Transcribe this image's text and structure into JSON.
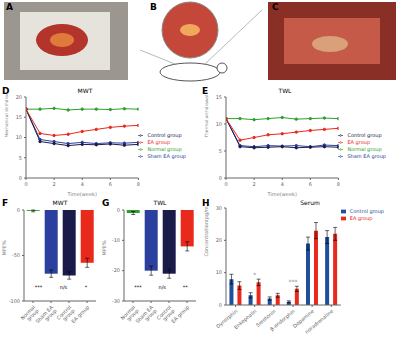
{
  "chart_data": [
    {
      "panel": "D",
      "type": "line",
      "title": "MWT",
      "x_label": "Time(week)",
      "y_label": "Mechanical Withdrawal Threshold(g)",
      "x": [
        0,
        1,
        2,
        3,
        4,
        5,
        6,
        7,
        8
      ],
      "xlim": [
        0,
        8
      ],
      "xticks": [
        0,
        2,
        4,
        6,
        8
      ],
      "ylim": [
        0,
        20
      ],
      "yticks": [
        0,
        5,
        10,
        15,
        20
      ],
      "legend": "right",
      "marker": "circle",
      "series": [
        {
          "name": "Normal group",
          "color": "#2ca02c",
          "values": [
            17,
            17,
            17.2,
            16.8,
            17,
            17,
            16.9,
            17.1,
            17
          ]
        },
        {
          "name": "Sham EA group",
          "color": "#2b3f9e",
          "values": [
            17,
            9.5,
            9,
            8.5,
            8.8,
            8.5,
            8.7,
            8.6,
            8.8
          ]
        },
        {
          "name": "Control group",
          "color": "#1b1b4a",
          "values": [
            17,
            9,
            8.5,
            8,
            8.3,
            8.2,
            8.4,
            8.1,
            8.3
          ]
        },
        {
          "name": "EA group",
          "color": "#e8291c",
          "values": [
            17,
            11,
            10.5,
            10.8,
            11.5,
            12,
            12.5,
            12.8,
            13
          ]
        }
      ]
    },
    {
      "panel": "E",
      "type": "line",
      "title": "TWL",
      "x_label": "Time(week)",
      "y_label": "Thermal withdrawal Latency(s)",
      "x": [
        0,
        1,
        2,
        3,
        4,
        5,
        6,
        7,
        8
      ],
      "xlim": [
        0,
        8
      ],
      "xticks": [
        0,
        2,
        4,
        6,
        8
      ],
      "ylim": [
        0,
        15
      ],
      "yticks": [
        0,
        5,
        10,
        15
      ],
      "legend": "right",
      "marker": "circle",
      "series": [
        {
          "name": "Normal group",
          "color": "#2ca02c",
          "values": [
            11,
            11,
            10.8,
            11,
            11.2,
            10.9,
            11,
            11.1,
            11
          ]
        },
        {
          "name": "Sham EA group",
          "color": "#2b3f9e",
          "values": [
            11,
            6,
            5.8,
            6,
            5.9,
            6,
            5.8,
            6.1,
            6
          ]
        },
        {
          "name": "Control group",
          "color": "#1b1b4a",
          "values": [
            11,
            5.8,
            5.6,
            5.7,
            5.8,
            5.6,
            5.7,
            5.8,
            5.7
          ]
        },
        {
          "name": "EA group",
          "color": "#e8291c",
          "values": [
            11,
            7,
            7.5,
            8,
            8.2,
            8.5,
            8.8,
            9,
            9.2
          ]
        }
      ]
    },
    {
      "panel": "F",
      "type": "bar",
      "title": "MWT",
      "y_label": "MPE%",
      "categories": [
        "Normal group",
        "Sham EA group",
        "Control group",
        "EA group"
      ],
      "values": [
        -1,
        -70,
        -72,
        -58
      ],
      "errors": [
        1,
        4,
        4,
        5
      ],
      "colors": [
        "#2ca02c",
        "#2b3f9e",
        "#1b1b4a",
        "#e8291c"
      ],
      "ylim": [
        -100,
        0
      ],
      "yticks": [
        -100,
        -50,
        0
      ],
      "annotations": [
        "***",
        "n/s",
        "*"
      ]
    },
    {
      "panel": "G",
      "type": "bar",
      "title": "TWL",
      "y_label": "MPE%",
      "categories": [
        "Normal group",
        "Sham EA group",
        "Control group",
        "EA group"
      ],
      "values": [
        -1,
        -20,
        -21,
        -12
      ],
      "errors": [
        0.5,
        1.5,
        1.5,
        1.5
      ],
      "colors": [
        "#2ca02c",
        "#2b3f9e",
        "#1b1b4a",
        "#e8291c"
      ],
      "ylim": [
        -30,
        0
      ],
      "yticks": [
        -30,
        -20,
        -10,
        0
      ],
      "annotations": [
        "***",
        "n/s",
        "**"
      ]
    },
    {
      "panel": "H",
      "type": "bar",
      "title": "Serum",
      "y_label": "Concentration(pg/ml)",
      "categories": [
        "Dynorphin",
        "Enkephalin",
        "Serotonin",
        "β-endorphin",
        "Dopamine",
        "noradrenaline"
      ],
      "series": [
        {
          "name": "Control group",
          "color": "#1f4e9c",
          "values": [
            8,
            3,
            2,
            1,
            19,
            21
          ],
          "errors": [
            1.5,
            0.8,
            0.5,
            0.3,
            2,
            2
          ]
        },
        {
          "name": "EA group",
          "color": "#e8291c",
          "values": [
            6,
            7,
            3,
            5,
            23,
            22
          ],
          "errors": [
            1.2,
            1,
            0.6,
            0.8,
            2.5,
            2
          ]
        }
      ],
      "ylim": [
        0,
        30
      ],
      "yticks": [
        0,
        10,
        20,
        30
      ],
      "legend": "upper right",
      "annotations": [
        {
          "category": "Enkephalin",
          "label": "*"
        },
        {
          "category": "β-endorphin",
          "label": "***"
        }
      ]
    }
  ],
  "photos": {
    "panels": [
      "A",
      "B",
      "C"
    ]
  }
}
